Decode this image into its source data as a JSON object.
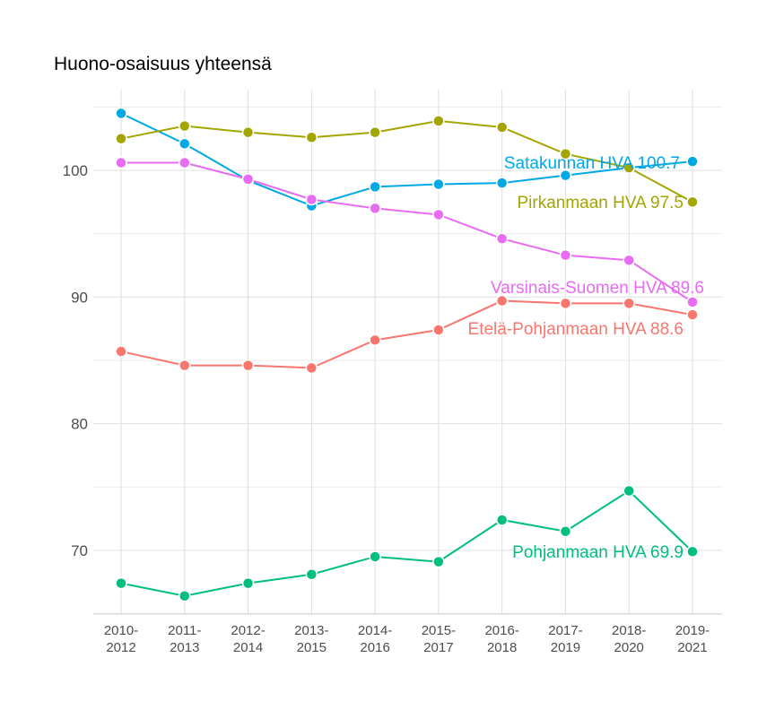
{
  "chart_data": {
    "type": "line",
    "title": "Huono-osaisuus yhteensä",
    "xlabel": "",
    "ylabel": "",
    "categories": [
      "2010-\n2012",
      "2011-\n2013",
      "2012-\n2014",
      "2013-\n2015",
      "2014-\n2016",
      "2015-\n2017",
      "2016-\n2018",
      "2017-\n2019",
      "2018-\n2020",
      "2019-\n2021"
    ],
    "ylim": [
      65,
      106.5
    ],
    "yticks": [
      70,
      80,
      90,
      100
    ],
    "grid": true,
    "legend": "none",
    "series": [
      {
        "name": "Satakunnan HVA",
        "label": "Satakunnan HVA 100.7",
        "color": "#00A9E6",
        "values": [
          104.5,
          102.1,
          99.2,
          97.2,
          98.7,
          98.9,
          99.0,
          99.6,
          100.2,
          100.7
        ]
      },
      {
        "name": "Pirkanmaan HVA",
        "label": "Pirkanmaan HVA 97.5",
        "color": "#A3A500",
        "values": [
          102.5,
          103.5,
          103.0,
          102.6,
          103.0,
          103.9,
          103.4,
          101.3,
          100.2,
          97.5
        ]
      },
      {
        "name": "Varsinais-Suomen HVA",
        "label": "Varsinais-Suomen HVA 89.6",
        "color": "#E76BF3",
        "values": [
          100.6,
          100.6,
          99.3,
          97.7,
          97.0,
          96.5,
          94.6,
          93.3,
          92.9,
          89.6
        ]
      },
      {
        "name": "Etelä-Pohjanmaan HVA",
        "label": "Etelä-Pohjanmaan HVA 88.6",
        "color": "#F8766D",
        "values": [
          85.7,
          84.6,
          84.6,
          84.4,
          86.6,
          87.4,
          89.7,
          89.5,
          89.5,
          88.6
        ]
      },
      {
        "name": "Pohjanmaan HVA",
        "label": "Pohjanmaan HVA 69.9",
        "color": "#00BF7D",
        "values": [
          67.4,
          66.4,
          67.4,
          68.1,
          69.5,
          69.1,
          72.4,
          71.5,
          74.7,
          69.9
        ]
      }
    ]
  }
}
